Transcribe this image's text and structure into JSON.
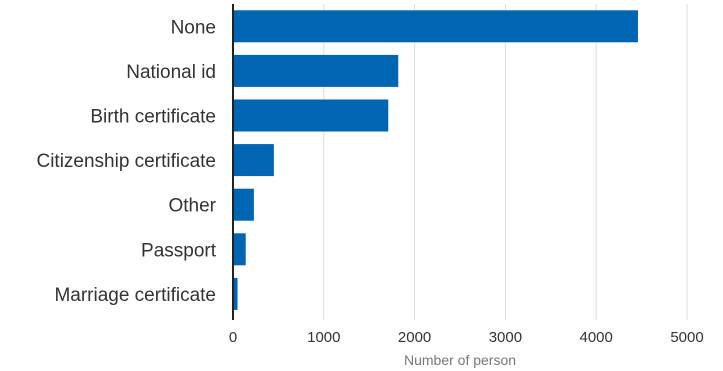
{
  "colors": {
    "bar": "#0066b3",
    "grid": "#dddddd",
    "axis": "#222222"
  },
  "chart_data": {
    "type": "bar",
    "orientation": "horizontal",
    "title": "",
    "xlabel": "Number of person",
    "ylabel": "",
    "categories": [
      "None",
      "National id",
      "Birth certificate",
      "Citizenship certificate",
      "Other",
      "Passport",
      "Marriage certificate"
    ],
    "values": [
      4460,
      1820,
      1710,
      450,
      230,
      140,
      50
    ],
    "xlim": [
      0,
      5000
    ],
    "xticks": [
      0,
      1000,
      2000,
      3000,
      4000,
      5000
    ],
    "grid": "vertical",
    "legend": "none"
  }
}
